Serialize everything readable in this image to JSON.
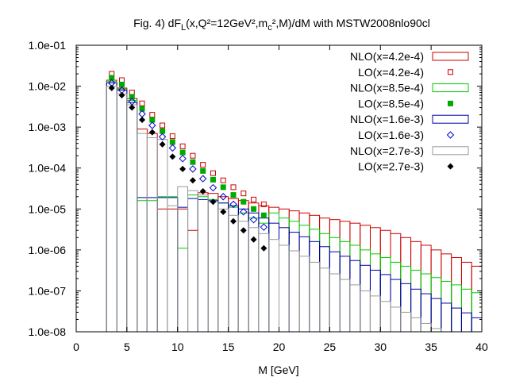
{
  "chart_data": {
    "type": "histogram-with-markers",
    "title": {
      "prefix": "Fig. 4) dF",
      "sub1": "L",
      "mid1": "(x,Q²=12GeV²,m",
      "sub2": "c",
      "suffix": "²,M)/dM with MSTW2008nlo90cl"
    },
    "xlabel": "M [GeV]",
    "ylabel": "",
    "xlim": [
      0,
      40
    ],
    "ylim": [
      1e-08,
      0.1
    ],
    "yscale": "log",
    "x_ticks": [
      "0",
      "5",
      "10",
      "15",
      "20",
      "25",
      "30",
      "35",
      "40"
    ],
    "y_ticks": [
      "1.0e-08",
      "1.0e-07",
      "1.0e-06",
      "1.0e-05",
      "1.0e-04",
      "1.0e-03",
      "1.0e-02",
      "1.0e-01"
    ],
    "legend_position": "top-right",
    "bin_width": 1,
    "series": [
      {
        "name": "NLO(x=4.2e-4)",
        "kind": "histogram",
        "color": "#cc0000",
        "bins": [
          [
            3,
            0.014
          ],
          [
            4,
            0.009
          ],
          [
            5,
            0.005
          ],
          [
            6,
            0.0009
          ],
          [
            7,
            0.0007
          ],
          [
            8,
            1e-05
          ],
          [
            9,
            1e-05
          ],
          [
            10,
            1e-05
          ],
          [
            11,
            3e-06
          ],
          [
            12,
            2.5e-05
          ],
          [
            13,
            2.4e-05
          ],
          [
            14,
            2e-05
          ],
          [
            15,
            1.8e-05
          ],
          [
            16,
            1.6e-05
          ],
          [
            17,
            1.4e-05
          ],
          [
            18,
            1.2e-05
          ],
          [
            19,
            1.1e-05
          ],
          [
            20,
            1e-05
          ],
          [
            21,
            9e-06
          ],
          [
            22,
            8e-06
          ],
          [
            23,
            7e-06
          ],
          [
            24,
            6e-06
          ],
          [
            25,
            5.5e-06
          ],
          [
            26,
            5e-06
          ],
          [
            27,
            4.5e-06
          ],
          [
            28,
            4e-06
          ],
          [
            29,
            3.5e-06
          ],
          [
            30,
            3e-06
          ],
          [
            31,
            2.5e-06
          ],
          [
            32,
            2e-06
          ],
          [
            33,
            1.6e-06
          ],
          [
            34,
            1.3e-06
          ],
          [
            35,
            1e-06
          ],
          [
            36,
            8e-07
          ],
          [
            37,
            6.5e-07
          ],
          [
            38,
            5e-07
          ],
          [
            39,
            4e-07
          ]
        ]
      },
      {
        "name": "LO(x=4.2e-4)",
        "kind": "marker",
        "marker": "open-square",
        "color": "#cc0000",
        "points": [
          [
            3.5,
            0.02
          ],
          [
            4.5,
            0.014
          ],
          [
            5.5,
            0.007
          ],
          [
            6.5,
            0.0038
          ],
          [
            7.5,
            0.002
          ],
          [
            8.5,
            0.0011
          ],
          [
            9.5,
            0.0006
          ],
          [
            10.5,
            0.00034
          ],
          [
            11.5,
            0.0002
          ],
          [
            12.5,
            0.00012
          ],
          [
            13.5,
            7.5e-05
          ],
          [
            14.5,
            5e-05
          ],
          [
            15.5,
            3.4e-05
          ],
          [
            16.5,
            2.4e-05
          ],
          [
            17.5,
            1.7e-05
          ],
          [
            18.5,
            1.3e-05
          ]
        ]
      },
      {
        "name": "NLO(x=8.5e-4)",
        "kind": "histogram",
        "color": "#00cc00",
        "bins": [
          [
            3,
            0.013
          ],
          [
            4,
            0.0085
          ],
          [
            5,
            0.0045
          ],
          [
            6,
            1.6e-05
          ],
          [
            7,
            1.6e-05
          ],
          [
            8,
            2e-05
          ],
          [
            9,
            2e-05
          ],
          [
            10,
            1.1e-06
          ],
          [
            11,
            2.2e-05
          ],
          [
            12,
            2e-05
          ],
          [
            13,
            1.7e-05
          ],
          [
            14,
            1.4e-05
          ],
          [
            15,
            1.1e-05
          ],
          [
            16,
            8e-06
          ],
          [
            17,
            6e-06
          ],
          [
            18,
            4.5e-06
          ],
          [
            19,
            8e-06
          ],
          [
            20,
            6e-06
          ],
          [
            21,
            5e-06
          ],
          [
            22,
            4e-06
          ],
          [
            23,
            3.2e-06
          ],
          [
            24,
            2.5e-06
          ],
          [
            25,
            2e-06
          ],
          [
            26,
            1.6e-06
          ],
          [
            27,
            1.3e-06
          ],
          [
            28,
            1e-06
          ],
          [
            29,
            8e-07
          ],
          [
            30,
            6.5e-07
          ],
          [
            31,
            5e-07
          ],
          [
            32,
            4e-07
          ],
          [
            33,
            3.2e-07
          ],
          [
            34,
            2.6e-07
          ],
          [
            35,
            2.1e-07
          ],
          [
            36,
            1.7e-07
          ],
          [
            37,
            1.4e-07
          ],
          [
            38,
            1.1e-07
          ],
          [
            39,
            9e-08
          ]
        ]
      },
      {
        "name": "LO(x=8.5e-4)",
        "kind": "marker",
        "marker": "filled-square",
        "color": "#00aa00",
        "points": [
          [
            3.5,
            0.016
          ],
          [
            4.5,
            0.011
          ],
          [
            5.5,
            0.0055
          ],
          [
            6.5,
            0.0028
          ],
          [
            7.5,
            0.0015
          ],
          [
            8.5,
            0.0008
          ],
          [
            9.5,
            0.00043
          ],
          [
            10.5,
            0.00024
          ],
          [
            11.5,
            0.00014
          ],
          [
            12.5,
            8.5e-05
          ],
          [
            13.5,
            5.2e-05
          ],
          [
            14.5,
            3.4e-05
          ],
          [
            15.5,
            2.2e-05
          ],
          [
            16.5,
            1.5e-05
          ],
          [
            17.5,
            1e-05
          ],
          [
            18.5,
            7e-06
          ]
        ]
      },
      {
        "name": "NLO(x=1.6e-3)",
        "kind": "histogram",
        "color": "#0000aa",
        "bins": [
          [
            3,
            0.012
          ],
          [
            4,
            0.008
          ],
          [
            5,
            0.004
          ],
          [
            6,
            1.9e-05
          ],
          [
            7,
            1.9e-05
          ],
          [
            8,
            1.9e-05
          ],
          [
            9,
            1.9e-05
          ],
          [
            10,
            1.1e-05
          ],
          [
            11,
            1.8e-05
          ],
          [
            12,
            1.7e-05
          ],
          [
            13,
            1.6e-05
          ],
          [
            14,
            1.4e-05
          ],
          [
            15,
            1.2e-05
          ],
          [
            16,
            1e-05
          ],
          [
            17,
            8e-06
          ],
          [
            18,
            6e-06
          ],
          [
            19,
            4.5e-06
          ],
          [
            20,
            3.5e-06
          ],
          [
            21,
            2.7e-06
          ],
          [
            22,
            2.1e-06
          ],
          [
            23,
            1.6e-06
          ],
          [
            24,
            1.2e-06
          ],
          [
            25,
            9e-07
          ],
          [
            26,
            7e-07
          ],
          [
            27,
            5.5e-07
          ],
          [
            28,
            4.2e-07
          ],
          [
            29,
            3.2e-07
          ],
          [
            30,
            2.5e-07
          ],
          [
            31,
            1.9e-07
          ],
          [
            32,
            1.5e-07
          ],
          [
            33,
            1.1e-07
          ],
          [
            34,
            8.5e-08
          ],
          [
            35,
            6.5e-08
          ],
          [
            36,
            5e-08
          ],
          [
            37,
            3.8e-08
          ],
          [
            38,
            2.9e-08
          ],
          [
            39,
            2.2e-08
          ]
        ]
      },
      {
        "name": "LO(x=1.6e-3)",
        "kind": "marker",
        "marker": "open-diamond",
        "color": "#0000cc",
        "points": [
          [
            3.5,
            0.012
          ],
          [
            4.5,
            0.008
          ],
          [
            5.5,
            0.0042
          ],
          [
            6.5,
            0.0021
          ],
          [
            7.5,
            0.0011
          ],
          [
            8.5,
            0.00058
          ],
          [
            9.5,
            0.00031
          ],
          [
            10.5,
            0.00017
          ],
          [
            11.5,
            9.5e-05
          ],
          [
            12.5,
            5.5e-05
          ],
          [
            13.5,
            3.3e-05
          ],
          [
            14.5,
            2e-05
          ],
          [
            15.5,
            1.3e-05
          ],
          [
            16.5,
            8.5e-06
          ],
          [
            17.5,
            5.5e-06
          ],
          [
            18.5,
            3.6e-06
          ]
        ]
      },
      {
        "name": "NLO(x=2.7e-3)",
        "kind": "histogram",
        "color": "#999999",
        "bins": [
          [
            3,
            0.01
          ],
          [
            4,
            0.0065
          ],
          [
            5,
            0.0035
          ],
          [
            6,
            0.0007
          ],
          [
            7,
            0.00055
          ],
          [
            8,
            0.0005
          ],
          [
            9,
            1.2e-05
          ],
          [
            10,
            3.5e-05
          ],
          [
            11,
            2.8e-05
          ],
          [
            12,
            2.2e-05
          ],
          [
            13,
            1.5e-05
          ],
          [
            14,
            1e-05
          ],
          [
            15,
            7e-06
          ],
          [
            16,
            5e-06
          ],
          [
            17,
            3.5e-06
          ],
          [
            18,
            2.5e-06
          ],
          [
            19,
            1.8e-06
          ],
          [
            20,
            1.3e-06
          ],
          [
            21,
            9.5e-07
          ],
          [
            22,
            7e-07
          ],
          [
            23,
            5e-07
          ],
          [
            24,
            3.6e-07
          ],
          [
            25,
            2.6e-07
          ],
          [
            26,
            1.9e-07
          ],
          [
            27,
            1.4e-07
          ],
          [
            28,
            1e-07
          ],
          [
            29,
            7.5e-08
          ],
          [
            30,
            5.5e-08
          ],
          [
            31,
            4e-08
          ],
          [
            32,
            3e-08
          ],
          [
            33,
            2.2e-08
          ],
          [
            34,
            1.6e-08
          ],
          [
            35,
            1.2e-08
          ]
        ]
      },
      {
        "name": "LO(x=2.7e-3)",
        "kind": "marker",
        "marker": "filled-diamond",
        "color": "#000000",
        "points": [
          [
            3.5,
            0.009
          ],
          [
            4.5,
            0.006
          ],
          [
            5.5,
            0.003
          ],
          [
            6.5,
            0.0015
          ],
          [
            7.5,
            0.00075
          ],
          [
            8.5,
            0.00038
          ],
          [
            9.5,
            0.00019
          ],
          [
            10.5,
            9.5e-05
          ],
          [
            11.5,
            5e-05
          ],
          [
            12.5,
            2.7e-05
          ],
          [
            13.5,
            1.5e-05
          ],
          [
            14.5,
            8.5e-06
          ],
          [
            15.5,
            5e-06
          ],
          [
            16.5,
            3e-06
          ],
          [
            17.5,
            1.8e-06
          ],
          [
            18.5,
            1.1e-06
          ]
        ]
      }
    ]
  }
}
